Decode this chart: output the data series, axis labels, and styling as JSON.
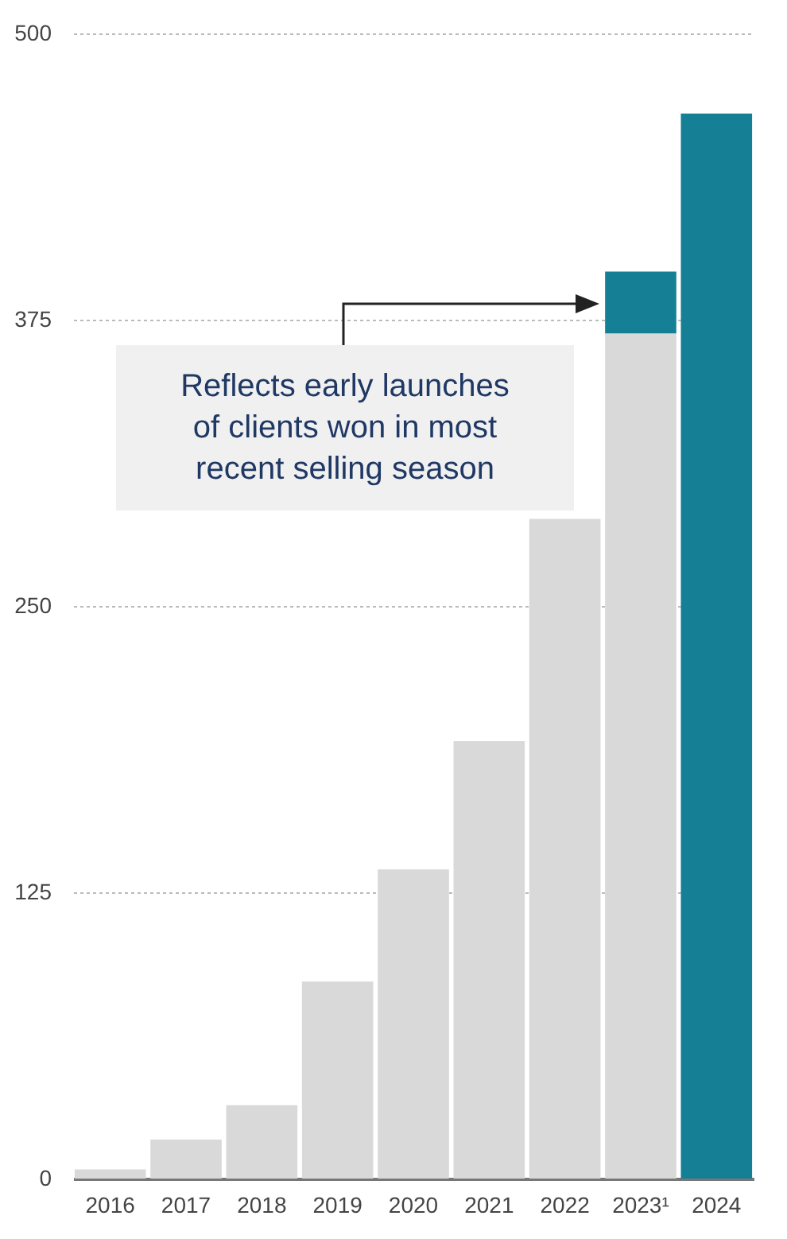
{
  "chart_data": {
    "type": "bar",
    "stacked": true,
    "categories": [
      "2016",
      "2017",
      "2018",
      "2019",
      "2020",
      "2021",
      "2022",
      "2023¹",
      "2024"
    ],
    "series": [
      {
        "color": "#d9d9d9",
        "values": [
          4,
          17,
          32,
          86,
          135,
          191,
          288,
          369,
          null
        ]
      },
      {
        "color": "#157f96",
        "values": [
          null,
          null,
          null,
          null,
          null,
          null,
          null,
          27,
          465
        ]
      }
    ],
    "ylim": [
      0,
      500
    ],
    "yticks": [
      0,
      125,
      250,
      375,
      500
    ],
    "grid": "y",
    "annotations": [
      "Reflects early launches of clients won in most recent selling season"
    ]
  }
}
